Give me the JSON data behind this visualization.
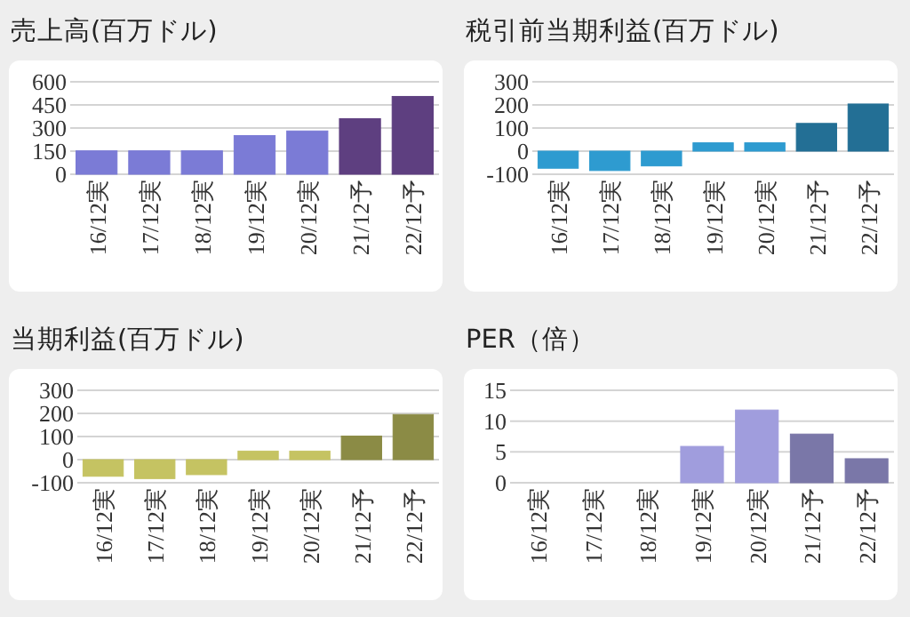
{
  "chart_data": [
    {
      "type": "bar",
      "title": "売上高(百万ドル)",
      "categories": [
        "16/12実",
        "17/12実",
        "18/12実",
        "19/12実",
        "20/12実",
        "21/12予",
        "22/12予"
      ],
      "values": [
        152,
        152,
        152,
        251,
        281,
        361,
        505
      ],
      "colors": [
        "#7b7bd6",
        "#7b7bd6",
        "#7b7bd6",
        "#7b7bd6",
        "#7b7bd6",
        "#5e3f80",
        "#5e3f80"
      ],
      "ylim": [
        0,
        600
      ],
      "yticks": [
        0,
        150,
        300,
        450,
        600
      ],
      "grid": "y"
    },
    {
      "type": "bar",
      "title": "税引前当期利益(百万ドル)",
      "categories": [
        "16/12実",
        "17/12実",
        "18/12実",
        "19/12実",
        "20/12実",
        "21/12予",
        "22/12予"
      ],
      "values": [
        -74,
        -84,
        -64,
        36,
        36,
        120,
        204
      ],
      "colors": [
        "#2e9bd0",
        "#2e9bd0",
        "#2e9bd0",
        "#2e9bd0",
        "#2e9bd0",
        "#236f95",
        "#236f95"
      ],
      "ylim": [
        -100,
        300
      ],
      "yticks": [
        -100,
        0,
        100,
        200,
        300
      ],
      "grid": "y"
    },
    {
      "type": "bar",
      "title": "当期利益(百万ドル)",
      "categories": [
        "16/12実",
        "17/12実",
        "18/12実",
        "19/12実",
        "20/12実",
        "21/12予",
        "22/12予"
      ],
      "values": [
        -72,
        -82,
        -65,
        37,
        37,
        102,
        195
      ],
      "colors": [
        "#c5c362",
        "#c5c362",
        "#c5c362",
        "#c5c362",
        "#c5c362",
        "#8b8b45",
        "#8b8b45"
      ],
      "ylim": [
        -100,
        300
      ],
      "yticks": [
        -100,
        0,
        100,
        200,
        300
      ],
      "grid": "y"
    },
    {
      "type": "bar",
      "title": "PER（倍）",
      "categories": [
        "16/12実",
        "17/12実",
        "18/12実",
        "19/12実",
        "20/12実",
        "21/12予",
        "22/12予"
      ],
      "values": [
        null,
        null,
        null,
        5.9,
        11.8,
        7.9,
        3.9
      ],
      "colors": [
        null,
        null,
        null,
        "#a09ddd",
        "#a09ddd",
        "#7a77a8",
        "#7a77a8"
      ],
      "ylim": [
        0,
        15
      ],
      "yticks": [
        0,
        5,
        10,
        15
      ],
      "grid": "y"
    }
  ]
}
